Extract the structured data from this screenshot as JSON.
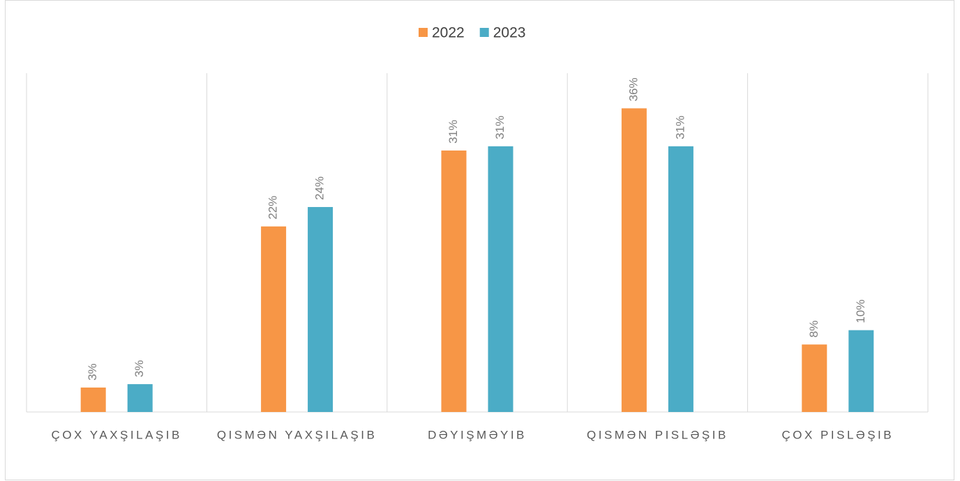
{
  "chart_data": {
    "type": "bar",
    "categories": [
      "ÇOX YAXŞILAŞIB",
      "QISMƏN YAXŞILAŞIB",
      "DƏYIŞMƏYIB",
      "QISMƏN PISLƏŞIB",
      "ÇOX PISLƏŞIB"
    ],
    "series": [
      {
        "name": "2022",
        "color": "#f79646",
        "values": [
          2.9,
          22.0,
          31.0,
          36.0,
          8.0
        ],
        "value_labels": [
          "3%",
          "22%",
          "31%",
          "36%",
          "8%"
        ]
      },
      {
        "name": "2023",
        "color": "#4bacc6",
        "values": [
          3.3,
          24.3,
          31.5,
          31.5,
          9.7
        ],
        "value_labels": [
          "3%",
          "24%",
          "31%",
          "31%",
          "10%"
        ]
      }
    ],
    "ylim": [
      0,
      40
    ],
    "legend": "top"
  }
}
